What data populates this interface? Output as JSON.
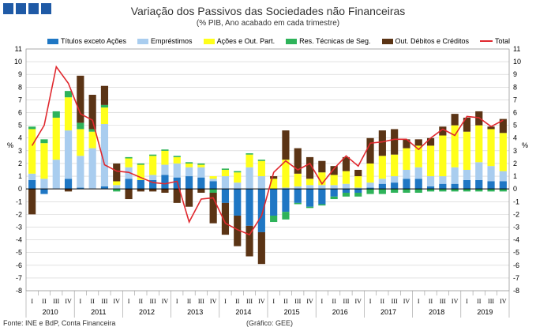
{
  "header": {
    "title": "Variação dos Passivos das Sociedades não Financeiras",
    "subtitle": "(% PIB, Ano acabado em cada trimestre)"
  },
  "footer": {
    "source": "Fonte: INE e BdP, Conta Financeira",
    "credit": "(Gráfico: GEE)"
  },
  "y_axis_label": "%",
  "colors": {
    "Títulos exceto Ações": "#1f77c4",
    "Empréstimos": "#a9cdef",
    "Ações e Out. Part.": "#ffff1a",
    "Res. Técnicas de Seg.": "#2eb35a",
    "Out. Débitos e Créditos": "#5b3415",
    "Total": "#e0282e"
  },
  "chart_data": {
    "type": "bar",
    "stacked": true,
    "ylim": [
      -8,
      11
    ],
    "yticks": [
      -8,
      -7,
      -6,
      -5,
      -4,
      -3,
      -2,
      -1,
      0,
      1,
      2,
      3,
      4,
      5,
      6,
      7,
      8,
      9,
      10,
      11
    ],
    "grid": true,
    "legend_position": "top",
    "quarter_labels": [
      "I",
      "II",
      "III",
      "IV"
    ],
    "years": [
      "2010",
      "2011",
      "2012",
      "2013",
      "2014",
      "2015",
      "2016",
      "2017",
      "2018",
      "2019"
    ],
    "categories": [
      "2010 I",
      "2010 II",
      "2010 III",
      "2010 IV",
      "2011 I",
      "2011 II",
      "2011 III",
      "2011 IV",
      "2012 I",
      "2012 II",
      "2012 III",
      "2012 IV",
      "2013 I",
      "2013 II",
      "2013 III",
      "2013 IV",
      "2014 I",
      "2014 II",
      "2014 III",
      "2014 IV",
      "2015 I",
      "2015 II",
      "2015 III",
      "2015 IV",
      "2016 I",
      "2016 II",
      "2016 III",
      "2016 IV",
      "2017 I",
      "2017 II",
      "2017 III",
      "2017 IV",
      "2018 I",
      "2018 II",
      "2018 III",
      "2018 IV",
      "2019 I",
      "2019 II",
      "2019 III",
      "2019 IV"
    ],
    "series": [
      {
        "name": "Títulos exceto Ações",
        "values": [
          0.7,
          -0.4,
          0,
          0.8,
          0.1,
          0,
          0.2,
          0,
          0.8,
          0.7,
          0.7,
          1.1,
          0.9,
          1.0,
          0.9,
          0.6,
          -1.1,
          -2.1,
          -2.9,
          -3.4,
          -2.1,
          -1.8,
          -1.1,
          -1.4,
          -1.2,
          -0.6,
          -0.3,
          -0.3,
          0.1,
          0.4,
          0.5,
          0.8,
          0.8,
          0.2,
          0.4,
          0.4,
          0.7,
          0.7,
          0.6,
          0.6
        ]
      },
      {
        "name": "Empréstimos",
        "values": [
          0.5,
          0.8,
          2.3,
          3.8,
          2.5,
          3.2,
          4.9,
          0.3,
          0.9,
          0,
          0.4,
          0.8,
          1.1,
          0.7,
          0.8,
          0.2,
          1.0,
          0.5,
          1.7,
          1.0,
          0,
          0.1,
          0.2,
          0.3,
          0.3,
          0.3,
          0.4,
          0.1,
          0.4,
          0.4,
          0.5,
          0.7,
          0.9,
          0.8,
          0.6,
          1.3,
          0.8,
          1.4,
          1.2,
          0.8
        ]
      },
      {
        "name": "Ações e Out. Part.",
        "values": [
          3.5,
          2.8,
          3.3,
          2.6,
          2.1,
          1.3,
          1.3,
          0.3,
          0.7,
          1.2,
          1.5,
          1.1,
          0.5,
          0.3,
          0.2,
          0.2,
          0.5,
          0.8,
          1.0,
          1.2,
          0.8,
          2.2,
          1.0,
          0.5,
          1.0,
          0.8,
          1.0,
          0.9,
          1.5,
          1.8,
          1.7,
          1.7,
          1.7,
          2.4,
          3.2,
          3.3,
          3.0,
          2.9,
          2.9,
          3.0
        ]
      },
      {
        "name": "Res. Técnicas de Seg.",
        "values": [
          0.2,
          0.3,
          0.5,
          0.5,
          0.5,
          0.2,
          0.2,
          -0.2,
          0.1,
          0.1,
          0.1,
          0.1,
          0.1,
          0.1,
          0.1,
          -0.3,
          0.1,
          0.1,
          0.1,
          0.1,
          -0.5,
          -0.6,
          -0.1,
          -0.1,
          -0.1,
          -0.2,
          -0.3,
          -0.3,
          -0.4,
          -0.4,
          -0.3,
          -0.3,
          -0.3,
          -0.2,
          -0.2,
          -0.2,
          -0.2,
          -0.2,
          -0.2,
          -0.2
        ]
      },
      {
        "name": "Out. Débitos e Créditos",
        "values": [
          -2.0,
          0,
          0,
          -0.2,
          3.7,
          2.7,
          1.5,
          1.4,
          -0.8,
          -0.2,
          -0.2,
          -0.3,
          -1.1,
          -1.4,
          -0.3,
          -2.4,
          -2.5,
          -2.4,
          -2.4,
          -2.5,
          0.2,
          2.3,
          2.0,
          1.7,
          0.9,
          0.7,
          1.1,
          0.5,
          2.0,
          2.0,
          2.0,
          0.7,
          0.5,
          0.6,
          0.7,
          0.9,
          1.1,
          1.1,
          0.2,
          1.1
        ]
      }
    ],
    "line": {
      "name": "Total",
      "values": [
        3.4,
        5.0,
        9.6,
        8.3,
        5.9,
        5.4,
        1.9,
        1.4,
        1.3,
        0.9,
        0.5,
        0.4,
        0.6,
        -2.6,
        -0.8,
        -0.7,
        -2.7,
        -3.2,
        -3.6,
        -2.1,
        1.3,
        2.2,
        1.5,
        2.0,
        0.4,
        1.6,
        2.6,
        1.8,
        3.6,
        3.7,
        3.9,
        3.9,
        3.1,
        4.0,
        4.7,
        4.2,
        5.7,
        5.6,
        4.9,
        5.4
      ]
    }
  }
}
